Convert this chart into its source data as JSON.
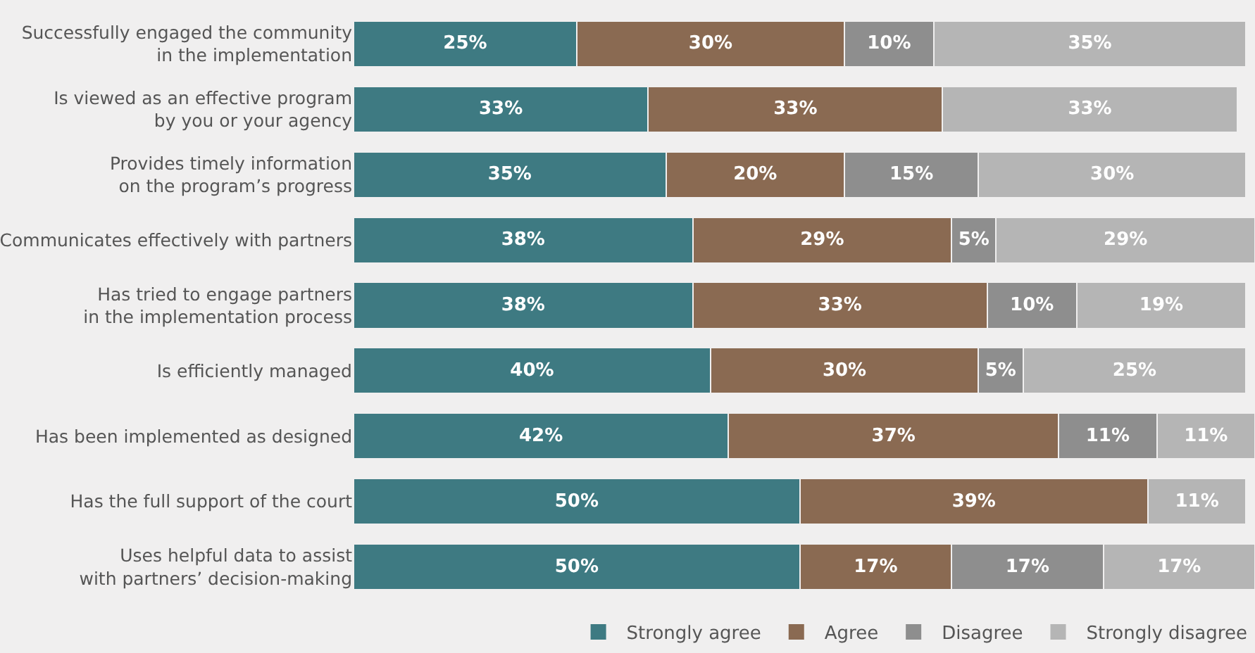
{
  "chart_data": {
    "type": "bar",
    "orientation": "horizontal",
    "stacked": true,
    "categories": [
      "Successfully engaged the community\nin the implementation",
      "Is viewed as an effective program\nby you or your agency",
      "Provides timely information\non the program’s progress",
      "Communicates effectively with partners",
      "Has tried to engage partners\nin the implementation process",
      "Is efficiently managed",
      "Has been implemented as designed",
      "Has the full support of the court",
      "Uses helpful data to assist\nwith partners’ decision-making"
    ],
    "series": [
      {
        "name": "Strongly agree",
        "color": "#3e7a82",
        "values": [
          25,
          33,
          35,
          38,
          38,
          40,
          42,
          50,
          50
        ],
        "value_labels": [
          "25%",
          "33%",
          "35%",
          "38%",
          "38%",
          "40%",
          "42%",
          "50%",
          "50%"
        ]
      },
      {
        "name": "Agree",
        "color": "#8a6a52",
        "values": [
          30,
          33,
          20,
          29,
          33,
          30,
          37,
          39,
          17
        ],
        "value_labels": [
          "30%",
          "33%",
          "20%",
          "29%",
          "33%",
          "30%",
          "37%",
          "39%",
          "17%"
        ]
      },
      {
        "name": "Disagree",
        "color": "#8e8e8e",
        "values": [
          10,
          0,
          15,
          5,
          10,
          5,
          11,
          0,
          17
        ],
        "value_labels": [
          "10%",
          null,
          "15%",
          "5%",
          "10%",
          "5%",
          "11%",
          null,
          "17%"
        ]
      },
      {
        "name": "Strongly disagree",
        "color": "#b5b5b5",
        "values": [
          35,
          33,
          30,
          29,
          19,
          25,
          11,
          11,
          17
        ],
        "value_labels": [
          "35%",
          "33%",
          "30%",
          "29%",
          "19%",
          "25%",
          "11%",
          "11%",
          "17%"
        ]
      }
    ],
    "xlim": [
      0,
      101
    ],
    "tick_labels": "y",
    "legend": "bottom"
  }
}
